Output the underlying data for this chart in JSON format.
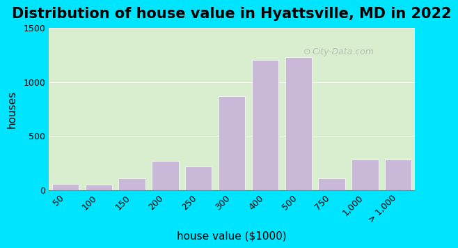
{
  "title": "Distribution of house value in Hyattsville, MD in 2022",
  "xlabel": "house value ($1000)",
  "ylabel": "houses",
  "bar_labels": [
    "50",
    "100",
    "150",
    "200",
    "250",
    "300",
    "400",
    "500",
    "750",
    "1,000",
    "> 1,000"
  ],
  "bar_values": [
    60,
    50,
    110,
    270,
    220,
    870,
    1200,
    1230,
    110,
    280,
    280
  ],
  "bar_color": "#c9b8d8",
  "ylim": [
    0,
    1500
  ],
  "yticks": [
    0,
    500,
    1000,
    1500
  ],
  "title_fontsize": 15,
  "axis_fontsize": 11,
  "tick_fontsize": 9,
  "background_outer": "#00e5ff",
  "background_inner_left": "#d8eecf",
  "background_inner_right": "#e8f5f0",
  "watermark": "City-Data.com"
}
